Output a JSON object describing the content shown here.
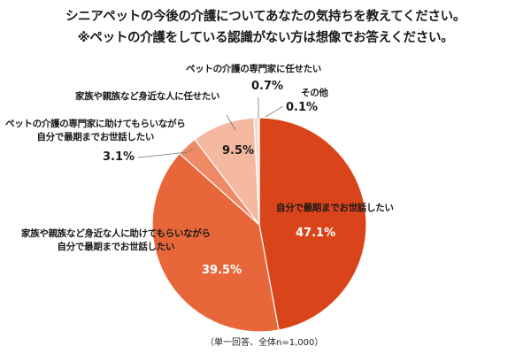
{
  "title": {
    "line1": "シニアペットの今後の介護についてあなたの気持ちを教えてください。",
    "line2": "※ペットの介護をしている認識がない方は想像でお答えください。"
  },
  "labels": {
    "s1": "自分で最期までお世話したい",
    "s2_line1": "家族や親族など身近な人に助けてもらいながら",
    "s2_line2": "自分で最期までお世話したい",
    "s3_line1": "ペットの介護の専門家に助けてもらいながら",
    "s3_line2": "自分で最期までお世話したい",
    "s4": "家族や親族など身近な人に任せたい",
    "s5": "ペットの介護の専門家に任せたい",
    "s6": "その他"
  },
  "values": {
    "s1": "47.1%",
    "s2": "39.5%",
    "s3": "3.1%",
    "s4": "9.5%",
    "s5": "0.7%",
    "s6": "0.1%"
  },
  "note": "（単一回答、全体n=1,000）",
  "chart_data": {
    "type": "pie",
    "title": "シニアペットの今後の介護についてあなたの気持ちを教えてください。",
    "subtitle": "※ペットの介護をしている認識がない方は想像でお答えください。",
    "categories": [
      "自分で最期までお世話したい",
      "家族や親族など身近な人に助けてもらいながら自分で最期までお世話したい",
      "ペットの介護の専門家に助けてもらいながら自分で最期までお世話したい",
      "家族や親族など身近な人に任せたい",
      "ペットの介護の専門家に任せたい",
      "その他"
    ],
    "values": [
      47.1,
      39.5,
      3.1,
      9.5,
      0.7,
      0.1
    ],
    "colors": [
      "#d9441a",
      "#e8673a",
      "#ee8a66",
      "#f5b8a0",
      "#f8d8cc",
      "#fbe9e2"
    ],
    "annotation": "（単一回答、全体n=1,000）",
    "start_angle": "12 o'clock, clockwise"
  }
}
